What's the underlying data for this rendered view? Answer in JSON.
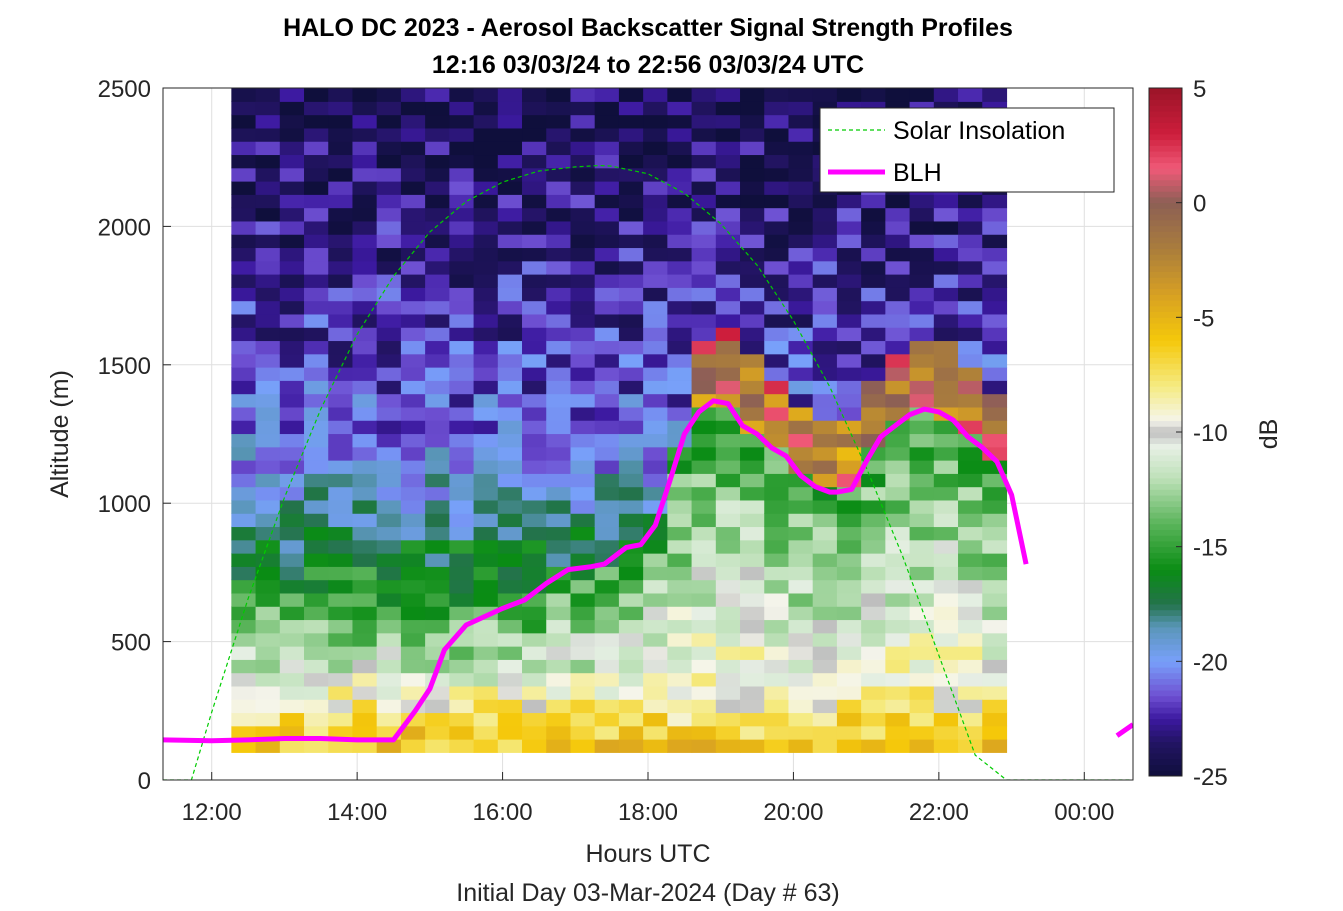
{
  "chart_data": {
    "type": "heatmap",
    "title": "HALO DC 2023 - Aerosol Backscatter Signal Strength Profiles",
    "subtitle": "12:16 03/03/24 to 22:56 03/03/24  UTC",
    "xlabel": "Hours UTC",
    "xlabel2": "Initial Day 03-Mar-2024 (Day # 63)",
    "ylabel": "Altitude (m)",
    "colorbar_label": "dB",
    "xlim_hours": [
      11.33,
      24.67
    ],
    "ylim": [
      0,
      2500
    ],
    "x_tick_values": [
      12,
      14,
      16,
      18,
      20,
      22,
      24
    ],
    "x_tick_labels": [
      "12:00",
      "14:00",
      "16:00",
      "18:00",
      "20:00",
      "22:00",
      "00:00"
    ],
    "y_ticks": [
      "0",
      "500",
      "1000",
      "1500",
      "2000",
      "2500"
    ],
    "y_tick_values": [
      0,
      500,
      1000,
      1500,
      2000,
      2500
    ],
    "clim": [
      -25,
      5
    ],
    "colorbar_ticks": [
      "5",
      "0",
      "-5",
      "-10",
      "-15",
      "-20",
      "-25"
    ],
    "colorbar_tick_values": [
      5,
      0,
      -5,
      -10,
      -15,
      -20,
      -25
    ],
    "heatmap": {
      "x_start_hours": 12.27,
      "x_end_hours": 22.93,
      "y_start_m": 100,
      "y_end_m": 2500,
      "n_cols": 32,
      "n_rows": 50,
      "approx_dB_by_altitude": [
        {
          "altitude_m": 150,
          "dB": -6
        },
        {
          "altitude_m": 300,
          "dB": -9
        },
        {
          "altitude_m": 500,
          "dB": -13
        },
        {
          "altitude_m": 750,
          "dB": -16
        },
        {
          "altitude_m": 1000,
          "dB": -19
        },
        {
          "altitude_m": 1300,
          "dB": -21
        },
        {
          "altitude_m": 1600,
          "dB": -22
        },
        {
          "altitude_m": 2000,
          "dB": -23
        },
        {
          "altitude_m": 2400,
          "dB": -24
        }
      ]
    },
    "legend": {
      "position": "top-right",
      "entries": [
        "Solar Insolation",
        "BLH"
      ]
    },
    "series": [
      {
        "name": "Solar Insolation",
        "color": "#00cc00",
        "style": "dashed",
        "x": [
          11.33,
          11.72,
          12.0,
          12.5,
          13.0,
          13.5,
          14.0,
          14.5,
          15.0,
          15.5,
          16.0,
          16.5,
          17.0,
          17.33,
          17.5,
          18.0,
          18.5,
          19.0,
          19.5,
          20.0,
          20.5,
          21.0,
          21.5,
          22.0,
          22.5,
          22.93,
          23.5,
          24.0,
          24.67
        ],
        "y": [
          0,
          0,
          245,
          655,
          1020,
          1340,
          1610,
          1820,
          1980,
          2090,
          2160,
          2200,
          2215,
          2220,
          2218,
          2190,
          2120,
          2010,
          1860,
          1660,
          1420,
          1130,
          810,
          450,
          90,
          0,
          0,
          0,
          0
        ]
      },
      {
        "name": "BLH",
        "color": "#ff00ff",
        "style": "solid",
        "x": [
          11.33,
          12.0,
          12.5,
          13.0,
          13.5,
          14.0,
          14.5,
          14.8,
          15.0,
          15.2,
          15.5,
          16.0,
          16.3,
          16.6,
          16.9,
          17.2,
          17.4,
          17.7,
          17.9,
          18.1,
          18.3,
          18.5,
          18.7,
          18.9,
          19.1,
          19.3,
          19.5,
          19.7,
          19.9,
          20.1,
          20.3,
          20.5,
          20.6,
          20.8,
          21.0,
          21.2,
          21.4,
          21.6,
          21.8,
          22.0,
          22.2,
          22.4,
          22.6,
          22.8,
          23.0,
          23.2
        ],
        "y": [
          145,
          142,
          145,
          150,
          150,
          145,
          145,
          250,
          330,
          470,
          560,
          620,
          650,
          710,
          760,
          770,
          780,
          840,
          850,
          920,
          1080,
          1250,
          1330,
          1370,
          1360,
          1280,
          1250,
          1200,
          1170,
          1100,
          1060,
          1040,
          1040,
          1050,
          1150,
          1240,
          1280,
          1320,
          1340,
          1330,
          1300,
          1240,
          1200,
          1150,
          1030,
          780
        ]
      },
      {
        "name": "BLH",
        "color": "#ff00ff",
        "style": "solid",
        "x": [
          24.45,
          24.67
        ],
        "y": [
          160,
          200
        ]
      }
    ]
  }
}
